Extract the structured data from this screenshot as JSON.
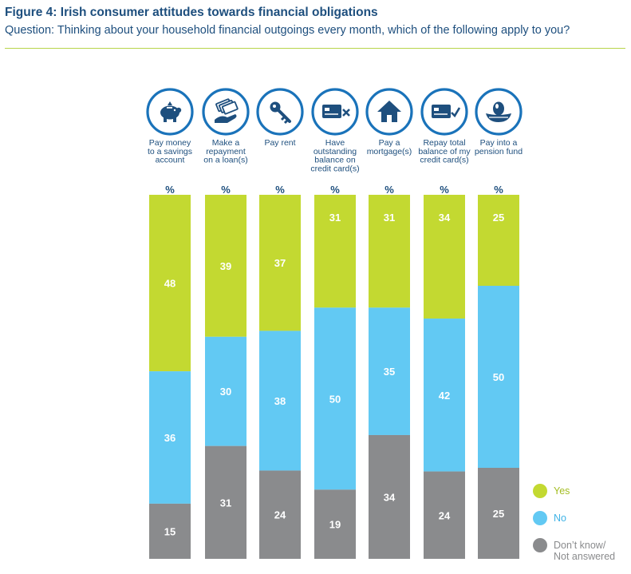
{
  "figure": {
    "title": "Figure 4: Irish consumer attitudes towards financial obligations",
    "subtitle": "Question: Thinking about your household financial outgoings every month, which of the following apply to you?"
  },
  "colors": {
    "yes": "#c3d931",
    "no": "#62c9f3",
    "dk": "#8a8b8d",
    "dark": "#1e4f7e",
    "accent": "#1a73ba"
  },
  "chart_data": {
    "type": "bar",
    "stacked": true,
    "orientation": "vertical",
    "unit": "%",
    "categories": [
      "Pay money to a savings account",
      "Make a repayment on a loan(s)",
      "Pay rent",
      "Have outstanding balance on credit card(s)",
      "Pay a mortgage(s)",
      "Repay total balance of my credit card(s)",
      "Pay into a pension fund"
    ],
    "category_label_lines": [
      [
        "Pay money",
        "to a savings",
        "account"
      ],
      [
        "Make a",
        "repayment",
        "on a loan(s)"
      ],
      [
        "Pay rent"
      ],
      [
        "Have",
        "outstanding",
        "balance on",
        "credit card(s)"
      ],
      [
        "Pay a",
        "mortgage(s)"
      ],
      [
        "Repay total",
        "balance of my",
        "credit card(s)"
      ],
      [
        "Pay into a",
        "pension fund"
      ]
    ],
    "icons": [
      "piggy-bank-icon",
      "loan-repayment-icon",
      "key-icon",
      "credit-card-x-icon",
      "house-icon",
      "credit-card-check-icon",
      "nest-egg-icon"
    ],
    "column_header": "%",
    "series": [
      {
        "name": "Yes",
        "values": [
          48,
          39,
          37,
          31,
          31,
          34,
          25
        ]
      },
      {
        "name": "No",
        "values": [
          36,
          30,
          38,
          50,
          35,
          42,
          50
        ]
      },
      {
        "name": "Don't know/ Not answered",
        "values": [
          15,
          31,
          24,
          19,
          34,
          24,
          25
        ]
      }
    ],
    "legend": [
      {
        "label": "Yes",
        "color": "#c3d931"
      },
      {
        "label": "No",
        "color": "#62c9f3"
      },
      {
        "label": "Don’t know/",
        "label2": "Not answered",
        "color": "#8a8b8d"
      }
    ],
    "legend_position": "bottom-right"
  }
}
